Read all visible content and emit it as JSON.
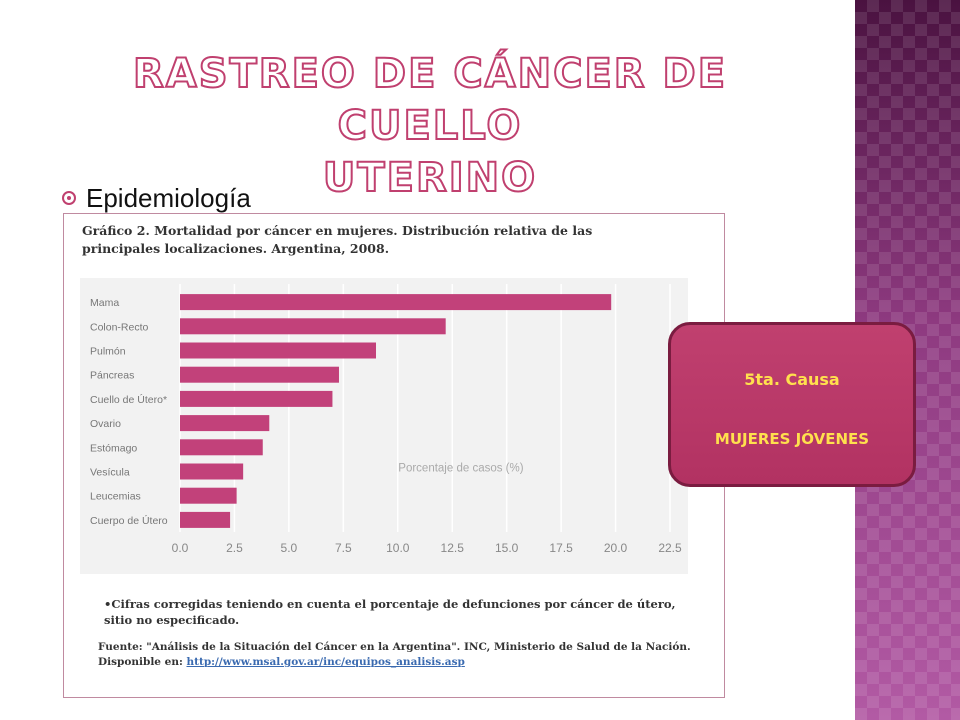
{
  "slide": {
    "title_line1": "Rastreo de cáncer de cuello",
    "title_line2": "uterino",
    "bullet": "Epidemiología"
  },
  "figure": {
    "caption_line1": "Gráfico 2. Mortalidad por cáncer en mujeres. Distribución relativa de las",
    "caption_line2": "principales localizaciones. Argentina, 2008.",
    "footnote_line1": "•Cifras corregidas teniendo en cuenta el porcentaje de defunciones por cáncer de útero,",
    "footnote_line2": "sitio no especificado.",
    "source_line1": "Fuente: \"Análisis de la Situación del Cáncer en la Argentina\". INC, Ministerio de Salud de la Nación.",
    "source_prefix": "Disponible en: ",
    "source_link": "http://www.msal.gov.ar/inc/equipos_analisis.asp"
  },
  "chart_data": {
    "type": "bar",
    "orientation": "horizontal",
    "categories": [
      "Mama",
      "Colon-Recto",
      "Pulmón",
      "Páncreas",
      "Cuello de Útero*",
      "Ovario",
      "Estómago",
      "Vesícula",
      "Leucemias",
      "Cuerpo de Útero"
    ],
    "values": [
      19.8,
      12.2,
      9.0,
      7.3,
      7.0,
      4.1,
      3.8,
      2.9,
      2.6,
      2.3
    ],
    "xlabel": "Porcentaje de casos (%)",
    "xlim": [
      0,
      22.5
    ],
    "xticks": [
      "0.0",
      "2.5",
      "5.0",
      "7.5",
      "10.0",
      "12.5",
      "15.0",
      "17.5",
      "20.0",
      "22.5"
    ],
    "grid": true,
    "colors": {
      "bar": "#c2417a",
      "background": "#f2f2f2",
      "grid": "#ffffff"
    }
  },
  "callout": {
    "line1": "5ta. Causa",
    "line2": "MUJERES JÓVENES"
  }
}
